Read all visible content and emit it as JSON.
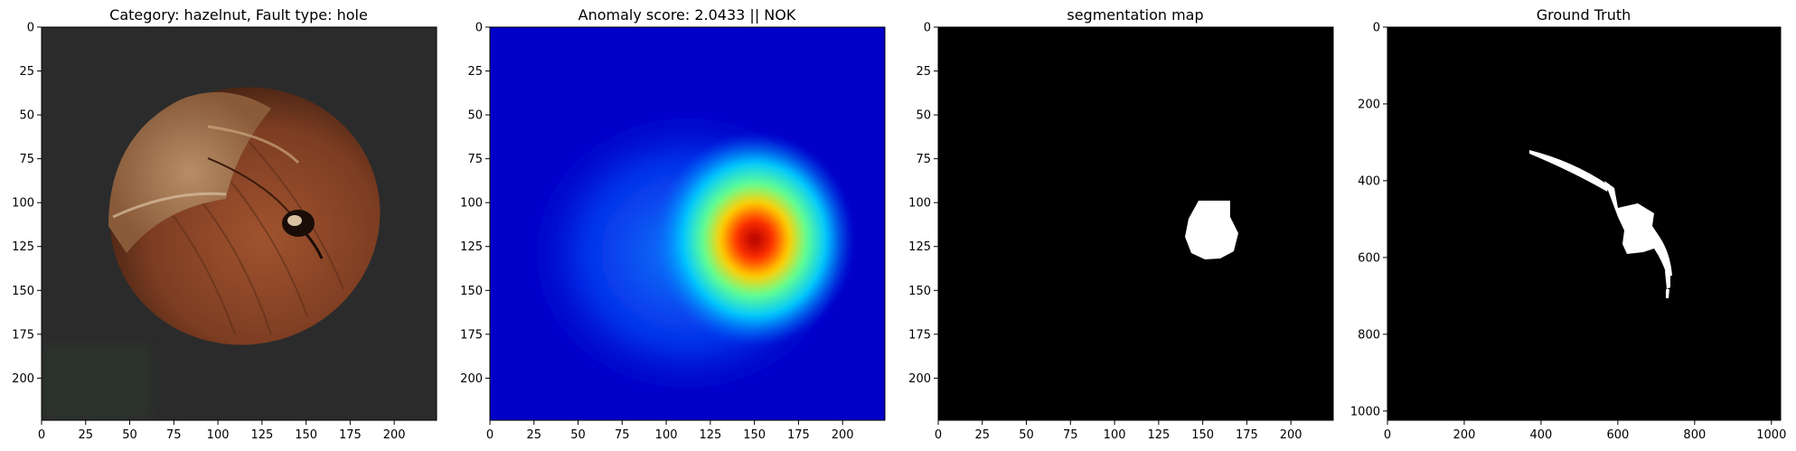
{
  "panels": [
    {
      "title": "Category: hazelnut, Fault type: hole",
      "image": "hazelnut-photo",
      "x_ticks": [
        "0",
        "25",
        "50",
        "75",
        "100",
        "125",
        "150",
        "175",
        "200"
      ],
      "y_ticks": [
        "0",
        "25",
        "50",
        "75",
        "100",
        "125",
        "150",
        "175",
        "200"
      ],
      "extent": [
        0,
        224
      ]
    },
    {
      "title": "Anomaly score: 2.0433 || NOK",
      "image": "anomaly-heatmap",
      "x_ticks": [
        "0",
        "25",
        "50",
        "75",
        "100",
        "125",
        "150",
        "175",
        "200"
      ],
      "y_ticks": [
        "0",
        "25",
        "50",
        "75",
        "100",
        "125",
        "150",
        "175",
        "200"
      ],
      "extent": [
        0,
        224
      ]
    },
    {
      "title": "segmentation map",
      "image": "segmentation-mask",
      "x_ticks": [
        "0",
        "25",
        "50",
        "75",
        "100",
        "125",
        "150",
        "175",
        "200"
      ],
      "y_ticks": [
        "0",
        "25",
        "50",
        "75",
        "100",
        "125",
        "150",
        "175",
        "200"
      ],
      "extent": [
        0,
        224
      ]
    },
    {
      "title": "Ground Truth",
      "image": "ground-truth-mask",
      "x_ticks": [
        "0",
        "200",
        "400",
        "600",
        "800",
        "1000"
      ],
      "y_ticks": [
        "0",
        "200",
        "400",
        "600",
        "800",
        "1000"
      ],
      "extent": [
        0,
        1024
      ]
    }
  ],
  "colors": {
    "background": "#ffffff",
    "photo_background": "#2b2b2b",
    "heatmap_low": "#0000c8",
    "heatmap_high": "#b00000",
    "mask_background": "#000000",
    "mask_foreground": "#ffffff"
  }
}
